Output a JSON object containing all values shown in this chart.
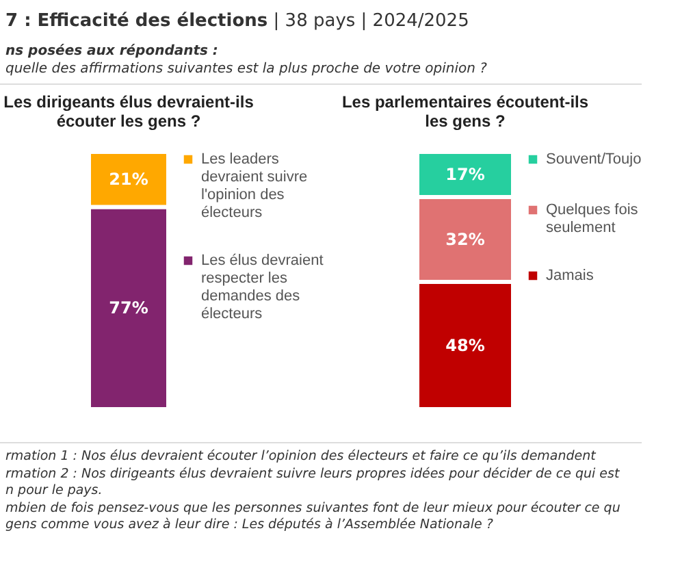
{
  "chart_data": [
    {
      "type": "bar",
      "stacked": true,
      "title": "Les dirigeants élus devraient-ils écouter les gens ?",
      "categories": [
        null
      ],
      "legend": "right",
      "annotations": [
        "7 : Efficacité des élections",
        "| 38 pays | 2024/2025",
        "ns posées aux répondants :",
        "quelle des affirmations suivantes est la plus proche de votre opinion ?"
      ],
      "series": [
        {
          "name": "Les élus devraient respecter les demandes des électeurs",
          "color": "#82246e",
          "values": [
            77
          ],
          "value_labels": [
            "77%"
          ]
        },
        {
          "name": "Les leaders devraient suivre l'opinion des électeurs",
          "color": "#ffa800",
          "values": [
            21
          ],
          "value_labels": [
            "21%"
          ]
        }
      ]
    },
    {
      "type": "bar",
      "stacked": true,
      "title": "Les parlementaires écoutent-ils les gens ?",
      "categories": [
        null
      ],
      "legend": "right",
      "annotations": [
        "rmation 1 : Nos élus devraient écouter l’opinion des électeurs et faire ce qu’ils demandent",
        "rmation 2 : Nos dirigeants élus devraient suivre leurs propres idées pour décider de ce qui est",
        "n pour le pays.",
        "mbien de fois pensez-vous que les personnes suivantes font de leur mieux pour écouter ce qu",
        "gens comme vous avez à leur dire : Les députés à l’Assemblée Nationale ?"
      ],
      "series": [
        {
          "name": "Jamais",
          "color": "#c00000",
          "values": [
            48
          ],
          "value_labels": [
            "48%"
          ]
        },
        {
          "name": "Quelques fois seulement",
          "color": "#e07272",
          "values": [
            32
          ],
          "value_labels": [
            "32%"
          ]
        },
        {
          "name": "Souvent/Toujo",
          "color": "#26cf9f",
          "values": [
            17
          ],
          "value_labels": [
            "17%"
          ]
        }
      ]
    }
  ]
}
